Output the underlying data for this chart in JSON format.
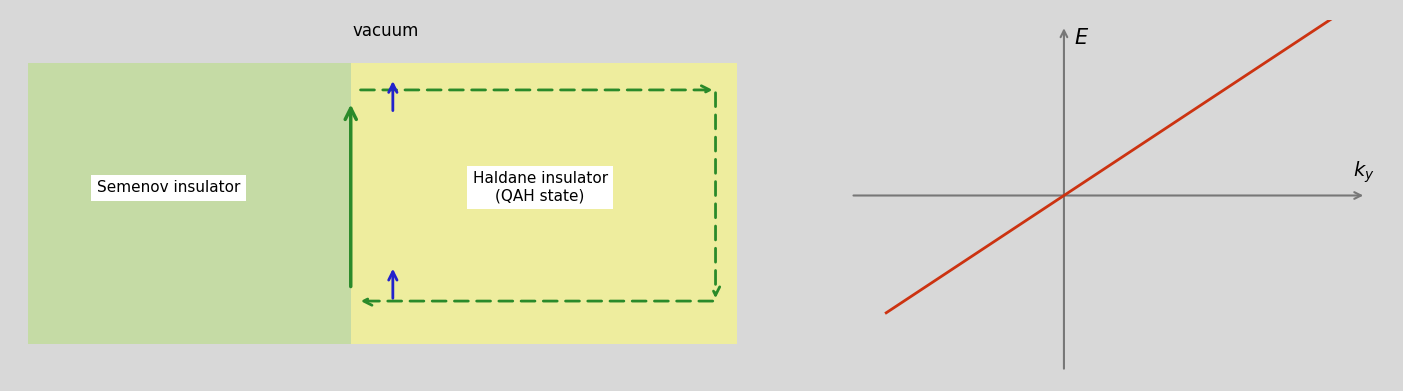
{
  "fig_width": 14.03,
  "fig_height": 3.91,
  "bg_color": "#d8d8d8",
  "left_panel": {
    "semenov_color": "#c5dba5",
    "haldane_color": "#eeed9e",
    "vacuum_label": "vacuum",
    "semenov_label": "Semenov insulator",
    "haldane_label": "Haldane insulator\n(QAH state)",
    "green_arrow_color": "#2a8a2a",
    "blue_arrow_color": "#2222cc",
    "dashed_color": "#2a8a2a",
    "label_fontsize": 11,
    "vacuum_fontsize": 12
  },
  "right_panel": {
    "line_color": "#cc3311",
    "axis_color": "#777777",
    "E_label": "E",
    "ky_label": "$k_y$",
    "line_slope": 1.0
  }
}
